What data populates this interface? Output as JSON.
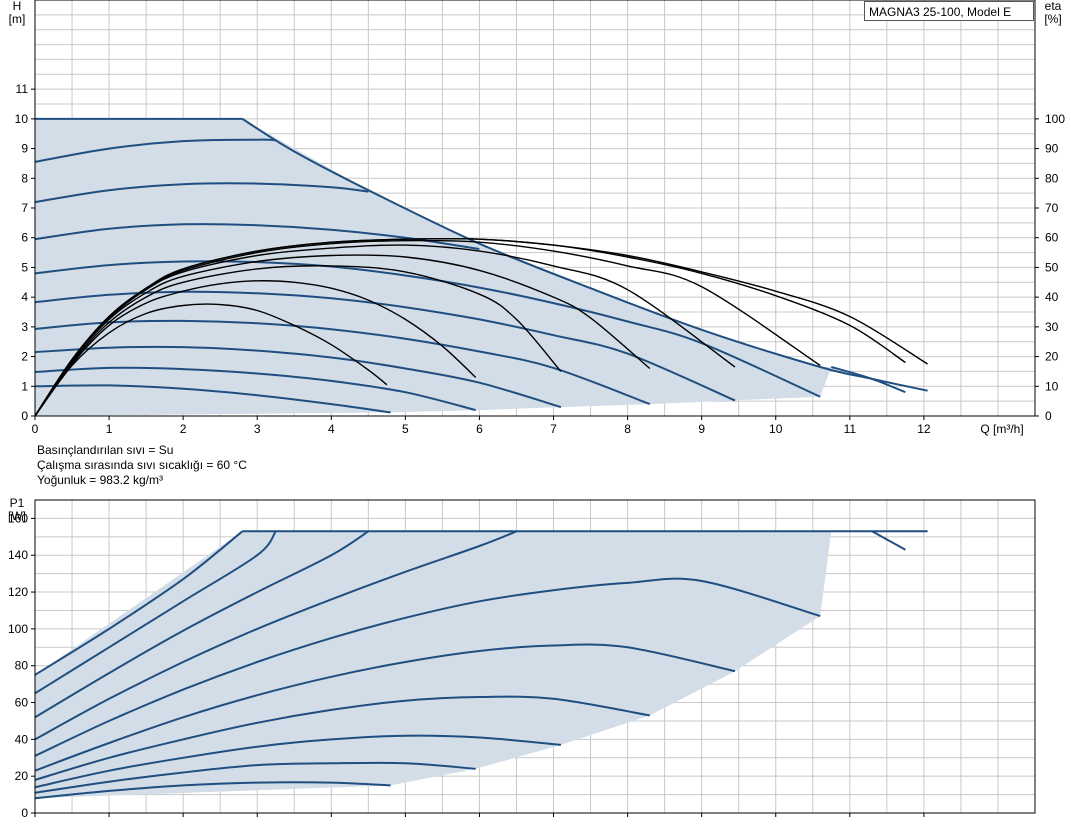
{
  "model": "MAGNA3 25-100, Model E",
  "notes": {
    "liquid": "Basınçlandırılan sıvı = Su",
    "temperature": "Çalışma sırasında sıvı sıcaklığı = 60 °C",
    "density": "Yoğunluk = 983.2 kg/m³"
  },
  "colors": {
    "curve": "#1f4e80",
    "eta_curve": "#000000",
    "area_fill": "#d3dde7",
    "grid": "#c8c8c8"
  },
  "chart_data": [
    {
      "type": "line",
      "xlabel": "Q [m³/h]",
      "ylabel_left": "H\n[m]",
      "ylabel_right": "eta\n[%]",
      "xlim": [
        0,
        13.5
      ],
      "ylim_left": [
        0,
        14
      ],
      "ylim_right": [
        0,
        140
      ],
      "xticks": [
        0,
        1,
        2,
        3,
        4,
        5,
        6,
        7,
        8,
        9,
        10,
        11,
        12
      ],
      "yticks_left": [
        0,
        1,
        2,
        3,
        4,
        5,
        6,
        7,
        8,
        9,
        10,
        11
      ],
      "yticks_right": [
        0,
        10,
        20,
        30,
        40,
        50,
        60,
        70,
        80,
        90,
        100
      ],
      "grid": true,
      "envelope": {
        "x": [
          0,
          2.8,
          4.5,
          6.0,
          7.5,
          9.0,
          10.6,
          10.75,
          10.6,
          9.4,
          8.3,
          7.1,
          6.0,
          4.8,
          0
        ],
        "y": [
          10.0,
          10.0,
          7.6,
          5.8,
          4.3,
          2.9,
          1.65,
          1.65,
          0.65,
          0.52,
          0.4,
          0.3,
          0.2,
          0.12,
          0.0
        ]
      },
      "head_series": [
        {
          "x": [
            0,
            1.0,
            2.0,
            3.0,
            4.0,
            4.8
          ],
          "y": [
            1.0,
            1.03,
            0.92,
            0.7,
            0.4,
            0.12
          ]
        },
        {
          "x": [
            0,
            1.0,
            2.0,
            3.0,
            4.0,
            5.0,
            5.95
          ],
          "y": [
            1.48,
            1.62,
            1.58,
            1.43,
            1.18,
            0.8,
            0.2
          ]
        },
        {
          "x": [
            0,
            1.0,
            2.0,
            3.0,
            4.0,
            5.0,
            6.0,
            7.1
          ],
          "y": [
            2.15,
            2.3,
            2.32,
            2.2,
            1.97,
            1.6,
            1.12,
            0.3
          ]
        },
        {
          "x": [
            0,
            1.0,
            2.0,
            3.0,
            4.0,
            5.0,
            6.0,
            7.0,
            8.3
          ],
          "y": [
            2.93,
            3.15,
            3.2,
            3.12,
            2.92,
            2.6,
            2.17,
            1.62,
            0.4
          ]
        },
        {
          "x": [
            0,
            1.0,
            2.0,
            3.0,
            4.0,
            5.0,
            6.0,
            7.0,
            8.0,
            9.45
          ],
          "y": [
            3.83,
            4.08,
            4.18,
            4.13,
            3.96,
            3.66,
            3.25,
            2.72,
            2.1,
            0.52
          ]
        },
        {
          "x": [
            0,
            1.0,
            2.0,
            3.0,
            4.0,
            5.0,
            6.0,
            7.0,
            8.0,
            9.0,
            10.6
          ],
          "y": [
            4.8,
            5.08,
            5.2,
            5.18,
            5.03,
            4.73,
            4.32,
            3.8,
            3.18,
            2.45,
            0.65
          ]
        },
        {
          "x": [
            0,
            1.0,
            2.0,
            3.0,
            4.0,
            5.0,
            6.0
          ],
          "y": [
            5.95,
            6.3,
            6.45,
            6.42,
            6.27,
            6.0,
            5.62
          ]
        },
        {
          "x": [
            0,
            1.0,
            2.0,
            3.0,
            4.0,
            4.5
          ],
          "y": [
            7.2,
            7.6,
            7.8,
            7.82,
            7.7,
            7.55
          ]
        },
        {
          "x": [
            0,
            1.0,
            2.0,
            3.0,
            3.25
          ],
          "y": [
            8.55,
            9.0,
            9.25,
            9.3,
            9.28
          ]
        },
        {
          "x": [
            0,
            2.8
          ],
          "y": [
            10.0,
            10.0
          ]
        },
        {
          "x": [
            2.8,
            3.5,
            4.5,
            6.0,
            7.5,
            9.0,
            10.6,
            11.3,
            12.05
          ],
          "y": [
            10.0,
            8.9,
            7.6,
            5.8,
            4.3,
            2.9,
            1.65,
            1.25,
            0.85
          ]
        },
        {
          "x": [
            10.75,
            11.3,
            11.75
          ],
          "y": [
            1.65,
            1.25,
            0.8
          ]
        }
      ],
      "eta_series": [
        {
          "x": [
            0,
            0.5,
            1.0,
            1.5,
            2.0,
            2.5,
            3.0,
            3.5,
            4.0,
            4.5,
            4.75
          ],
          "y": [
            0,
            17.0,
            28.0,
            34.5,
            37.2,
            37.5,
            35.5,
            30.5,
            24.0,
            15.5,
            10.5
          ]
        },
        {
          "x": [
            0,
            0.5,
            1.0,
            1.5,
            2.0,
            2.5,
            3.0,
            3.5,
            4.0,
            4.5,
            5.0,
            5.5,
            5.95
          ],
          "y": [
            0,
            17.5,
            30.5,
            38.0,
            42.0,
            44.5,
            45.5,
            45.0,
            43.0,
            39.0,
            32.5,
            23.5,
            13.0
          ]
        },
        {
          "x": [
            0,
            0.5,
            1.0,
            1.5,
            2.0,
            3.0,
            4.0,
            5.0,
            6.0,
            6.5,
            7.1
          ],
          "y": [
            0,
            18.0,
            31.5,
            40.0,
            45.0,
            49.5,
            50.5,
            48.5,
            41.0,
            32.5,
            15.0
          ]
        },
        {
          "x": [
            0,
            0.5,
            1.0,
            1.5,
            2.0,
            3.0,
            4.0,
            5.0,
            6.0,
            7.0,
            7.5,
            8.3
          ],
          "y": [
            0,
            18.5,
            32.5,
            41.5,
            47.0,
            52.0,
            54.0,
            53.5,
            49.0,
            40.0,
            33.0,
            16.0
          ]
        },
        {
          "x": [
            0,
            0.5,
            1.0,
            1.5,
            2.0,
            3.0,
            4.0,
            5.0,
            6.0,
            7.0,
            8.0,
            9.45
          ],
          "y": [
            0,
            19.0,
            33.0,
            42.5,
            48.5,
            54.0,
            56.5,
            57.5,
            55.5,
            50.5,
            42.5,
            16.5
          ]
        },
        {
          "x": [
            0,
            0.5,
            1.0,
            1.5,
            2.0,
            3.0,
            4.0,
            5.0,
            6.0,
            7.0,
            8.0,
            9.0,
            10.6
          ],
          "y": [
            0,
            19.0,
            33.5,
            43.0,
            49.0,
            55.0,
            58.0,
            59.0,
            58.5,
            55.5,
            50.5,
            43.5,
            17.0
          ]
        },
        {
          "x": [
            0,
            0.5,
            1.0,
            1.5,
            2.0,
            3.0,
            4.0,
            5.0,
            6.0,
            7.0,
            8.0,
            9.0,
            10.0,
            11.0,
            11.75
          ],
          "y": [
            0,
            19.0,
            33.5,
            43.0,
            49.5,
            55.5,
            58.5,
            59.5,
            59.5,
            57.5,
            53.5,
            48.0,
            40.5,
            30.5,
            18.0
          ]
        },
        {
          "x": [
            0,
            0.5,
            1.0,
            1.5,
            2.0,
            3.0,
            4.0,
            5.0,
            6.0,
            7.0,
            8.0,
            9.0,
            10.0,
            11.0,
            12.05
          ],
          "y": [
            0,
            19.0,
            33.5,
            43.0,
            49.5,
            55.5,
            58.5,
            59.5,
            59.5,
            57.5,
            54.0,
            48.5,
            42.0,
            33.5,
            17.5
          ]
        }
      ]
    },
    {
      "type": "line",
      "xlabel": "",
      "ylabel": "P1\n[W]",
      "xlim": [
        0,
        13.5
      ],
      "ylim": [
        0,
        170
      ],
      "yticks": [
        0,
        20,
        40,
        60,
        80,
        100,
        120,
        140,
        160
      ],
      "grid": true,
      "envelope": {
        "x": [
          0,
          2.8,
          10.75,
          10.6,
          9.45,
          8.3,
          7.1,
          5.95,
          4.8,
          0
        ],
        "y": [
          75,
          153,
          153,
          107,
          77,
          53,
          37,
          24,
          15,
          8
        ]
      },
      "power_series": [
        {
          "x": [
            0,
            1.0,
            2.0,
            3.0,
            4.0,
            4.8
          ],
          "y": [
            8,
            12,
            15,
            16.5,
            16.5,
            15
          ]
        },
        {
          "x": [
            0,
            1.0,
            2.0,
            3.0,
            4.0,
            5.0,
            5.95
          ],
          "y": [
            11,
            17,
            22,
            26,
            27,
            27,
            24
          ]
        },
        {
          "x": [
            0,
            1.0,
            2.0,
            3.0,
            4.0,
            5.0,
            6.0,
            7.1
          ],
          "y": [
            14,
            23,
            30,
            36,
            40,
            42,
            41,
            37
          ]
        },
        {
          "x": [
            0,
            1.0,
            2.0,
            3.0,
            4.0,
            5.0,
            6.0,
            7.0,
            8.3
          ],
          "y": [
            18,
            30,
            40,
            49,
            56,
            61,
            63,
            62,
            53
          ]
        },
        {
          "x": [
            0,
            1.0,
            2.0,
            3.0,
            4.0,
            5.0,
            6.0,
            7.0,
            8.0,
            9.45
          ],
          "y": [
            23,
            38,
            52,
            64,
            74,
            82,
            88,
            91,
            90,
            77
          ]
        },
        {
          "x": [
            0,
            1.0,
            2.0,
            3.0,
            4.0,
            5.0,
            6.0,
            7.0,
            8.0,
            9.0,
            10.6
          ],
          "y": [
            31,
            50,
            67,
            82,
            95,
            106,
            115,
            121,
            125,
            126,
            107
          ]
        },
        {
          "x": [
            0,
            1.0,
            2.0,
            3.0,
            4.0,
            5.0,
            6.0,
            6.5
          ],
          "y": [
            40,
            62,
            82,
            100,
            116,
            131,
            145,
            153
          ]
        },
        {
          "x": [
            0,
            1.0,
            2.0,
            3.0,
            4.0,
            4.5
          ],
          "y": [
            52,
            76,
            99,
            120,
            140,
            153
          ]
        },
        {
          "x": [
            0,
            1.0,
            2.0,
            3.0,
            3.25
          ],
          "y": [
            65,
            90,
            115,
            140,
            153
          ]
        },
        {
          "x": [
            0,
            1.0,
            2.0,
            2.8
          ],
          "y": [
            75,
            100,
            127,
            153
          ]
        },
        {
          "x": [
            2.8,
            12.05
          ],
          "y": [
            153,
            153
          ]
        },
        {
          "x": [
            11.3,
            11.75
          ],
          "y": [
            153,
            143
          ]
        }
      ]
    }
  ]
}
